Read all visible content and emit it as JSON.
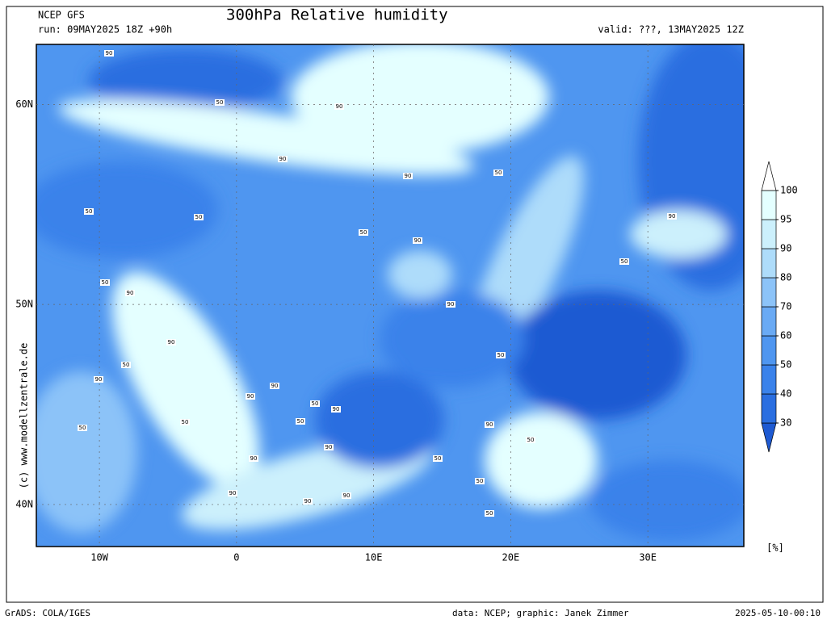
{
  "header": {
    "model": "NCEP GFS",
    "run": "run: 09MAY2025 18Z +90h",
    "title": "300hPa Relative humidity",
    "valid": "valid: ???, 13MAY2025 12Z"
  },
  "map": {
    "lonlim": [
      -14.6,
      37.0
    ],
    "latlim": [
      37.9,
      63.0
    ],
    "lon_ticks": [
      {
        "value": -10,
        "label": "10W"
      },
      0,
      {
        "value": 10,
        "label": "10E"
      },
      {
        "value": 20,
        "label": "20E"
      },
      {
        "value": 30,
        "label": "30E"
      }
    ],
    "lat_ticks": [
      {
        "value": 40,
        "label": "40N"
      },
      {
        "value": 50,
        "label": "50N"
      },
      {
        "value": 60,
        "label": "60N"
      }
    ],
    "watermark": "(c) www.modellzentrale.de",
    "contour_labels": [
      "90",
      "50",
      "90",
      "90",
      "90",
      "50",
      "50",
      "50",
      "50",
      "90",
      "50",
      "90",
      "90",
      "50",
      "90",
      "50",
      "90",
      "90",
      "50",
      "90",
      "50",
      "50",
      "90",
      "50",
      "90",
      "50",
      "90",
      "90",
      "50",
      "90",
      "50",
      "90",
      "90",
      "50",
      "50",
      "90"
    ]
  },
  "colorbar": {
    "levels": [
      30,
      40,
      50,
      60,
      70,
      80,
      90,
      95,
      100
    ],
    "colors": [
      "#1e5ad2",
      "#2a6ee0",
      "#3a82ea",
      "#4f96f0",
      "#6aaaf4",
      "#8cc3f8",
      "#aedcfa",
      "#ccf0fc",
      "#e4ffff",
      "#ffffff"
    ],
    "unit": "[%]"
  },
  "footer": {
    "left": "GrADS: COLA/IGES",
    "center": "data: NCEP; graphic: Janek Zimmer",
    "right": "2025-05-10-00:10"
  }
}
